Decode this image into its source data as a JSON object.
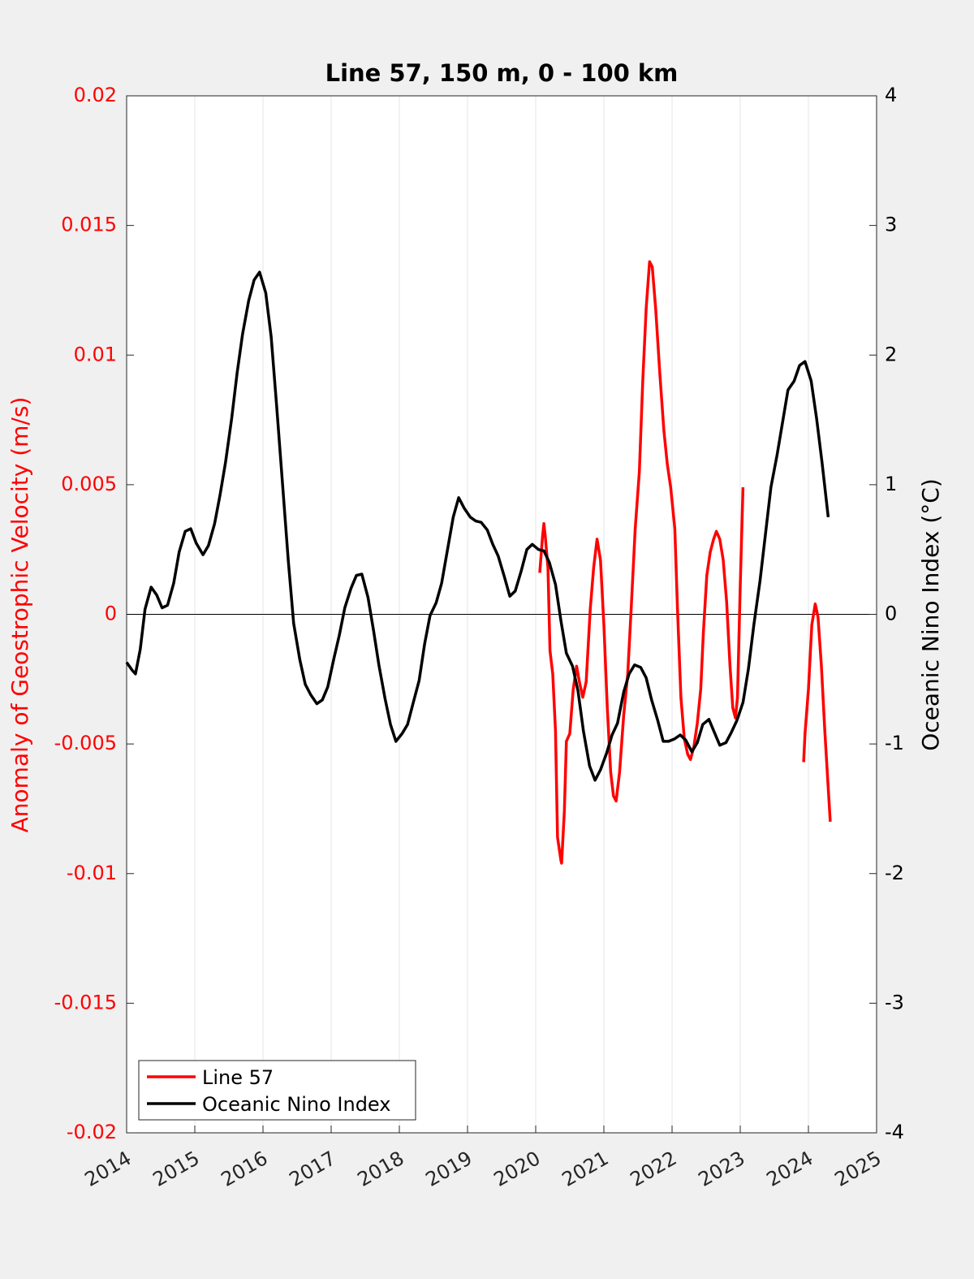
{
  "chart_data": {
    "type": "line",
    "title": "Line 57, 150 m, 0 - 100 km",
    "ylabel": "Anomaly of Geostrophic Velocity (m/s)",
    "y2label": "Oceanic Nino Index (°C)",
    "xlim": [
      2014,
      2025
    ],
    "xticks": [
      2014,
      2015,
      2016,
      2017,
      2018,
      2019,
      2020,
      2021,
      2022,
      2023,
      2024,
      2025
    ],
    "ylim": [
      -0.02,
      0.02
    ],
    "yticks": [
      -0.02,
      -0.015,
      -0.01,
      -0.005,
      0,
      0.005,
      0.01,
      0.015,
      0.02
    ],
    "y2lim": [
      -4,
      4
    ],
    "y2ticks": [
      -4,
      -3,
      -2,
      -1,
      0,
      1,
      2,
      3,
      4
    ],
    "grid": "x",
    "legend": "lower left",
    "series": [
      {
        "name": "Line 57",
        "color": "#ff0000",
        "x": [
          2020.06,
          2020.1,
          2020.12,
          2020.14,
          2020.18,
          2020.21,
          2020.25,
          2020.29,
          2020.32,
          2020.37,
          2020.38,
          2020.42,
          2020.45,
          2020.5,
          2020.55,
          2020.6,
          2020.64,
          2020.69,
          2020.74,
          2020.8,
          2020.85,
          2020.9,
          2020.95,
          2021.0,
          2021.05,
          2021.1,
          2021.14,
          2021.18,
          2021.23,
          2021.29,
          2021.35,
          2021.4,
          2021.46,
          2021.52,
          2021.57,
          2021.62,
          2021.67,
          2021.71,
          2021.76,
          2021.82,
          2021.88,
          2021.93,
          2021.98,
          2022.04,
          2022.08,
          2022.13,
          2022.18,
          2022.23,
          2022.27,
          2022.32,
          2022.37,
          2022.42,
          2022.46,
          2022.51,
          2022.56,
          2022.61,
          2022.65,
          2022.7,
          2022.75,
          2022.8,
          2022.85,
          2022.89,
          2022.93,
          2022.96,
          2023.0,
          2023.04,
          null,
          2023.93,
          2023.95,
          2024.0,
          2024.05,
          2024.1,
          2024.14,
          2024.19,
          2024.24,
          2024.29,
          2024.32
        ],
        "values": [
          0.0016,
          0.003,
          0.0035,
          0.003,
          0.0018,
          -0.0014,
          -0.0023,
          -0.0045,
          -0.0086,
          -0.0095,
          -0.0096,
          -0.0076,
          -0.0049,
          -0.0046,
          -0.0029,
          -0.002,
          -0.0026,
          -0.0032,
          -0.0026,
          0.0002,
          0.0018,
          0.0029,
          0.0021,
          -0.0004,
          -0.0036,
          -0.0061,
          -0.007,
          -0.0072,
          -0.0061,
          -0.0039,
          -0.0023,
          0.0002,
          0.0033,
          0.0055,
          0.009,
          0.0118,
          0.0136,
          0.0134,
          0.0118,
          0.0093,
          0.0071,
          0.0058,
          0.0049,
          0.0033,
          0.0002,
          -0.0032,
          -0.0048,
          -0.0054,
          -0.0056,
          -0.0051,
          -0.0042,
          -0.0029,
          -0.0007,
          0.0015,
          0.0024,
          0.0029,
          0.0032,
          0.0029,
          0.0021,
          0.0005,
          -0.002,
          -0.0036,
          -0.004,
          -0.0032,
          0.0011,
          0.0049,
          null,
          -0.0057,
          -0.0046,
          -0.0029,
          -0.0004,
          0.0004,
          -0.0001,
          -0.002,
          -0.0045,
          -0.0067,
          -0.008
        ]
      },
      {
        "name": "Oceanic Nino Index",
        "color": "#000000",
        "axis": "y2",
        "x": [
          2014.0,
          2014.08,
          2014.13,
          2014.2,
          2014.27,
          2014.36,
          2014.44,
          2014.52,
          2014.6,
          2014.69,
          2014.77,
          2014.86,
          2014.94,
          2015.02,
          2015.12,
          2015.2,
          2015.29,
          2015.37,
          2015.45,
          2015.54,
          2015.62,
          2015.7,
          2015.79,
          2015.87,
          2015.95,
          2016.04,
          2016.12,
          2016.2,
          2016.29,
          2016.37,
          2016.45,
          2016.54,
          2016.62,
          2016.7,
          2016.79,
          2016.87,
          2016.95,
          2017.04,
          2017.12,
          2017.2,
          2017.29,
          2017.37,
          2017.45,
          2017.54,
          2017.62,
          2017.7,
          2017.79,
          2017.87,
          2017.95,
          2018.04,
          2018.12,
          2018.2,
          2018.29,
          2018.37,
          2018.45,
          2018.54,
          2018.62,
          2018.7,
          2018.79,
          2018.87,
          2018.95,
          2019.04,
          2019.12,
          2019.2,
          2019.29,
          2019.37,
          2019.45,
          2019.54,
          2019.62,
          2019.7,
          2019.79,
          2019.87,
          2019.95,
          2020.04,
          2020.12,
          2020.2,
          2020.29,
          2020.37,
          2020.45,
          2020.54,
          2020.62,
          2020.7,
          2020.79,
          2020.87,
          2020.95,
          2021.04,
          2021.12,
          2021.2,
          2021.29,
          2021.37,
          2021.45,
          2021.54,
          2021.62,
          2021.7,
          2021.79,
          2021.87,
          2021.95,
          2022.04,
          2022.12,
          2022.2,
          2022.29,
          2022.37,
          2022.45,
          2022.54,
          2022.62,
          2022.7,
          2022.79,
          2022.87,
          2022.95,
          2023.04,
          2023.12,
          2023.2,
          2023.29,
          2023.37,
          2023.45,
          2023.54,
          2023.62,
          2023.7,
          2023.79,
          2023.87,
          2023.95,
          2024.04,
          2024.12,
          2024.2,
          2024.29
        ],
        "values": [
          -0.37,
          -0.43,
          -0.46,
          -0.27,
          0.04,
          0.21,
          0.15,
          0.05,
          0.07,
          0.24,
          0.48,
          0.64,
          0.66,
          0.55,
          0.46,
          0.53,
          0.7,
          0.92,
          1.17,
          1.51,
          1.86,
          2.16,
          2.42,
          2.58,
          2.64,
          2.48,
          2.14,
          1.61,
          0.98,
          0.42,
          -0.07,
          -0.35,
          -0.54,
          -0.62,
          -0.69,
          -0.66,
          -0.56,
          -0.34,
          -0.16,
          0.05,
          0.2,
          0.3,
          0.31,
          0.13,
          -0.12,
          -0.39,
          -0.65,
          -0.85,
          -0.98,
          -0.92,
          -0.85,
          -0.69,
          -0.51,
          -0.23,
          -0.01,
          0.09,
          0.24,
          0.48,
          0.75,
          0.9,
          0.82,
          0.75,
          0.72,
          0.71,
          0.65,
          0.54,
          0.45,
          0.29,
          0.14,
          0.18,
          0.34,
          0.5,
          0.54,
          0.5,
          0.49,
          0.4,
          0.23,
          -0.05,
          -0.3,
          -0.4,
          -0.59,
          -0.9,
          -1.17,
          -1.28,
          -1.2,
          -1.07,
          -0.93,
          -0.84,
          -0.6,
          -0.46,
          -0.39,
          -0.41,
          -0.49,
          -0.66,
          -0.82,
          -0.98,
          -0.98,
          -0.96,
          -0.93,
          -0.97,
          -1.06,
          -0.99,
          -0.85,
          -0.81,
          -0.91,
          -1.01,
          -0.99,
          -0.91,
          -0.82,
          -0.68,
          -0.42,
          -0.08,
          0.26,
          0.62,
          0.98,
          1.23,
          1.48,
          1.73,
          1.8,
          1.92,
          1.95,
          1.8,
          1.51,
          1.17,
          0.75
        ]
      }
    ]
  }
}
